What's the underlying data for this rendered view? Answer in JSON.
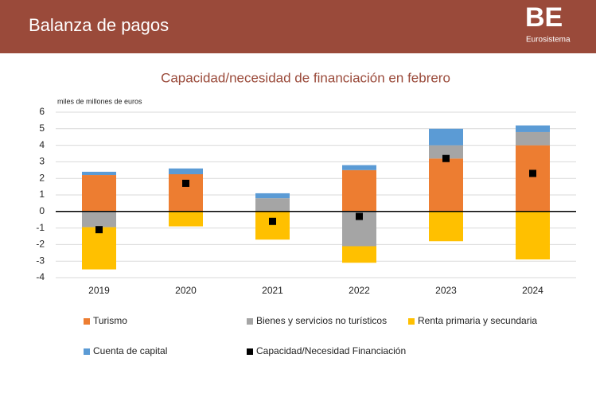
{
  "header": {
    "title": "Balanza de pagos",
    "logo": "BE",
    "logo_subtitle": "Eurosistema"
  },
  "chart_data": {
    "type": "bar",
    "stacked": true,
    "title": "Capacidad/necesidad de financiación en febrero",
    "y_label": "miles de millones de euros",
    "categories": [
      "2019",
      "2020",
      "2021",
      "2022",
      "2023",
      "2024"
    ],
    "series": [
      {
        "name": "Turismo",
        "color": "#ed7d31",
        "values": [
          2.2,
          2.25,
          0,
          2.5,
          3.2,
          4.0
        ]
      },
      {
        "name": "Bienes y servicios no turísticos",
        "color": "#a5a5a5",
        "values": [
          -0.95,
          0,
          0.8,
          -2.1,
          0.8,
          0.8
        ]
      },
      {
        "name": "Renta primaria y secundaria",
        "color": "#ffc000",
        "values": [
          -2.55,
          -0.9,
          -1.7,
          -1.0,
          -1.8,
          -2.9
        ]
      },
      {
        "name": "Cuenta de capital",
        "color": "#5b9bd5",
        "values": [
          0.2,
          0.35,
          0.3,
          0.3,
          1.0,
          0.4
        ]
      },
      {
        "name": "Capacidad/Necesidad Financiación",
        "color": "#000000",
        "type": "scatter",
        "values": [
          -1.1,
          1.7,
          -0.6,
          -0.3,
          3.2,
          2.3
        ]
      }
    ],
    "ylim": [
      -4,
      6
    ],
    "yticks": [
      -4,
      -3,
      -2,
      -1,
      0,
      1,
      2,
      3,
      4,
      5,
      6
    ],
    "grid": true
  }
}
